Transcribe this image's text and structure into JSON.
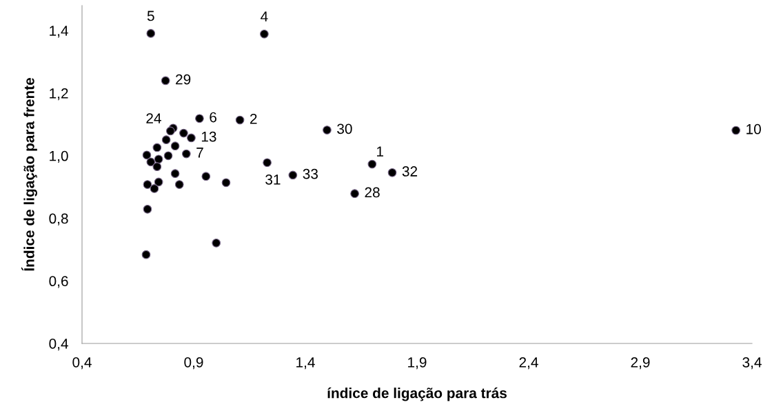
{
  "chart_data": {
    "type": "scatter",
    "xlabel": "índice de ligação para trás",
    "ylabel": "Índice de ligação para frente",
    "xlim": [
      0.4,
      3.4
    ],
    "xticks": [
      {
        "value": 0.4,
        "label": "0,4"
      },
      {
        "value": 0.9,
        "label": "0,9"
      },
      {
        "value": 1.4,
        "label": "1,4"
      },
      {
        "value": 1.9,
        "label": "1,9"
      },
      {
        "value": 2.4,
        "label": "2,4"
      },
      {
        "value": 2.9,
        "label": "2,9"
      },
      {
        "value": 3.4,
        "label": "3,4"
      }
    ],
    "ylim": [
      0.4,
      1.48
    ],
    "yticks": [
      {
        "value": 0.4,
        "label": "0,4"
      },
      {
        "value": 0.6,
        "label": "0,6"
      },
      {
        "value": 0.8,
        "label": "0,8"
      },
      {
        "value": 1.0,
        "label": "1,0"
      },
      {
        "value": 1.2,
        "label": "1,2"
      },
      {
        "value": 1.4,
        "label": "1,4"
      }
    ],
    "grid": false,
    "legend": false,
    "marker": "circle",
    "series": [
      {
        "color": "#000000",
        "x": [
          0.708,
          1.216,
          0.774,
          0.926,
          1.107,
          1.497,
          3.328,
          1.699,
          1.789,
          1.621,
          1.344,
          1.229,
          0.955,
          1.045,
          1.001,
          0.808,
          0.796,
          0.855,
          0.889,
          0.777,
          0.817,
          0.736,
          0.867,
          0.69,
          0.786,
          0.743,
          0.708,
          0.736,
          0.817,
          0.693,
          0.743,
          0.724,
          0.836,
          0.693,
          0.687
        ],
        "values": [
          1.391,
          1.389,
          1.24,
          1.119,
          1.114,
          1.082,
          1.081,
          0.973,
          0.946,
          0.879,
          0.938,
          0.978,
          0.934,
          0.914,
          0.721,
          1.088,
          1.079,
          1.072,
          1.057,
          1.051,
          1.031,
          1.026,
          1.006,
          1.002,
          1.0,
          0.989,
          0.98,
          0.965,
          0.943,
          0.908,
          0.916,
          0.895,
          0.908,
          0.829,
          0.684
        ]
      }
    ],
    "annotations": [
      {
        "text": "5",
        "x": 0.708,
        "y": 1.391
      },
      {
        "text": "4",
        "x": 1.216,
        "y": 1.389
      },
      {
        "text": "29",
        "x": 0.774,
        "y": 1.24
      },
      {
        "text": "24",
        "x": 0.808,
        "y": 1.088
      },
      {
        "text": "6",
        "x": 0.926,
        "y": 1.119
      },
      {
        "text": "2",
        "x": 1.107,
        "y": 1.114
      },
      {
        "text": "13",
        "x": 0.889,
        "y": 1.057
      },
      {
        "text": "30",
        "x": 1.497,
        "y": 1.082
      },
      {
        "text": "10",
        "x": 3.328,
        "y": 1.081
      },
      {
        "text": "7",
        "x": 0.867,
        "y": 1.006
      },
      {
        "text": "1",
        "x": 1.699,
        "y": 0.973
      },
      {
        "text": "32",
        "x": 1.789,
        "y": 0.946
      },
      {
        "text": "31",
        "x": 1.229,
        "y": 0.978
      },
      {
        "text": "33",
        "x": 1.344,
        "y": 0.938
      },
      {
        "text": "28",
        "x": 1.621,
        "y": 0.879
      }
    ]
  }
}
